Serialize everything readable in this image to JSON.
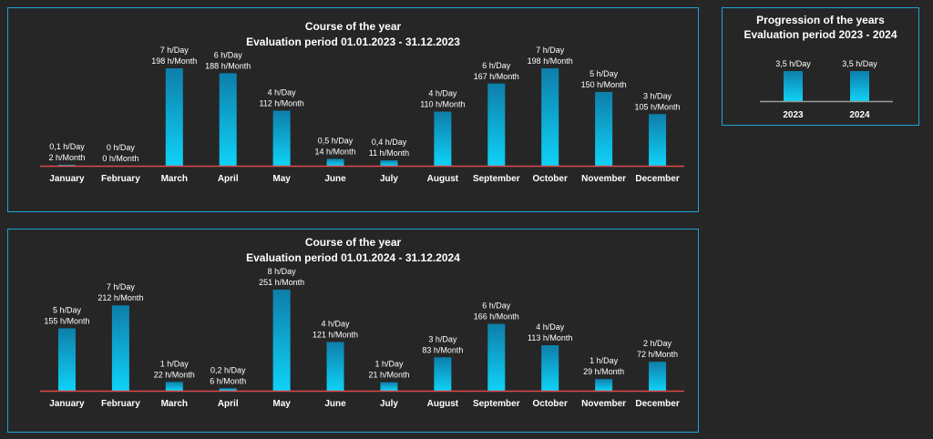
{
  "colors": {
    "bar_top": "#0e7eaa",
    "bar_bottom": "#0fd2f7",
    "baseline": "#e0484a",
    "neutral_axis": "#9a9a9a",
    "panel_border": "#1fa3d6",
    "background": "#262626"
  },
  "chart_data": [
    {
      "type": "bar",
      "title": "Course of the year",
      "subtitle": "Evaluation period 01.01.2023 - 31.12.2023",
      "categories": [
        "January",
        "February",
        "March",
        "April",
        "May",
        "June",
        "July",
        "August",
        "September",
        "October",
        "November",
        "December"
      ],
      "values": [
        2,
        0,
        198,
        188,
        112,
        14,
        11,
        110,
        167,
        198,
        150,
        105
      ],
      "labels_day": [
        "0,1 h/Day",
        "0 h/Day",
        "7 h/Day",
        "6 h/Day",
        "4 h/Day",
        "0,5 h/Day",
        "0,4 h/Day",
        "4 h/Day",
        "6 h/Day",
        "7 h/Day",
        "5 h/Day",
        "3 h/Day"
      ],
      "labels_month": [
        "2 h/Month",
        "0 h/Month",
        "198 h/Month",
        "188 h/Month",
        "112 h/Month",
        "14 h/Month",
        "11 h/Month",
        "110 h/Month",
        "167 h/Month",
        "198 h/Month",
        "150 h/Month",
        "105 h/Month"
      ],
      "ylim": [
        0,
        198
      ],
      "grid": false,
      "legend": "none"
    },
    {
      "type": "bar",
      "title": "Course of the year",
      "subtitle": "Evaluation period 01.01.2024 - 31.12.2024",
      "categories": [
        "January",
        "February",
        "March",
        "April",
        "May",
        "June",
        "July",
        "August",
        "September",
        "October",
        "November",
        "December"
      ],
      "values": [
        155,
        212,
        22,
        6,
        251,
        121,
        21,
        83,
        166,
        113,
        29,
        72
      ],
      "labels_day": [
        "5 h/Day",
        "7 h/Day",
        "1 h/Day",
        "0,2 h/Day",
        "8 h/Day",
        "4 h/Day",
        "1 h/Day",
        "3 h/Day",
        "6 h/Day",
        "4 h/Day",
        "1 h/Day",
        "2 h/Day"
      ],
      "labels_month": [
        "155 h/Month",
        "212 h/Month",
        "22 h/Month",
        "6 h/Month",
        "251 h/Month",
        "121 h/Month",
        "21 h/Month",
        "83 h/Month",
        "166 h/Month",
        "113 h/Month",
        "29 h/Month",
        "72 h/Month"
      ],
      "ylim": [
        0,
        251
      ],
      "grid": false,
      "legend": "none"
    },
    {
      "type": "bar",
      "title": "Progression of the years",
      "subtitle": "Evaluation period 2023 - 2024",
      "categories": [
        "2023",
        "2024"
      ],
      "values": [
        3.5,
        3.5
      ],
      "labels_day": [
        "3,5 h/Day",
        "3,5 h/Day"
      ],
      "ylim": [
        0,
        3.5
      ],
      "grid": false,
      "legend": "none"
    }
  ]
}
